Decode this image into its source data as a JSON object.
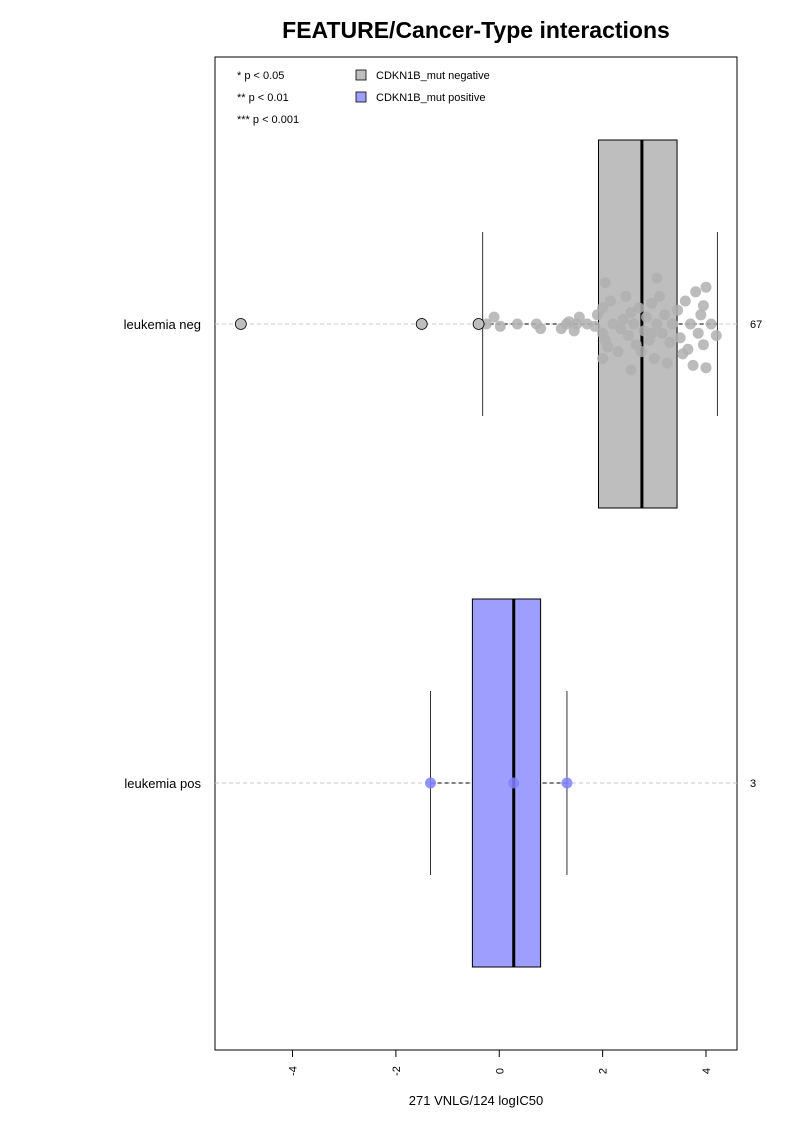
{
  "chart_data": {
    "type": "box",
    "title": "FEATURE/Cancer-Type interactions",
    "xlabel": "271 VNLG/124 logIC50",
    "xlim": [
      -5.5,
      4.6
    ],
    "xticks": [
      -4,
      -2,
      0,
      2,
      4
    ],
    "significance_legend": [
      "* p < 0.05",
      "** p < 0.01",
      "*** p < 0.001"
    ],
    "legend": [
      {
        "label": "CDKN1B_mut negative",
        "color": "#bebebe"
      },
      {
        "label": "CDKN1B_mut positive",
        "color": "#9e9eff"
      }
    ],
    "groups": [
      {
        "label": "leukemia neg",
        "n": "67",
        "box_color": "#bebebe",
        "point_color": "#b0b0b0",
        "q1": 1.92,
        "median": 2.76,
        "q3": 3.44,
        "whisker_low": -0.32,
        "whisker_high": 4.22,
        "outliers": [
          -5.0,
          -1.5,
          -0.4
        ],
        "points": [
          [
            -0.25,
            0.0
          ],
          [
            -0.1,
            -0.03
          ],
          [
            0.02,
            0.01
          ],
          [
            0.35,
            0.0
          ],
          [
            0.72,
            0.0
          ],
          [
            0.8,
            0.02
          ],
          [
            1.2,
            0.02
          ],
          [
            1.3,
            0.0
          ],
          [
            1.35,
            -0.01
          ],
          [
            1.45,
            0.03
          ],
          [
            1.5,
            0.0
          ],
          [
            1.55,
            -0.03
          ],
          [
            1.7,
            0.0
          ],
          [
            1.85,
            0.01
          ],
          [
            1.9,
            -0.04
          ],
          [
            2.0,
            0.04
          ],
          [
            2.0,
            -0.07
          ],
          [
            2.05,
            0.07
          ],
          [
            2.1,
            0.1
          ],
          [
            2.15,
            -0.1
          ],
          [
            2.2,
            0.0
          ],
          [
            2.35,
            0.02
          ],
          [
            2.4,
            -0.02
          ],
          [
            2.5,
            0.05
          ],
          [
            2.55,
            -0.05
          ],
          [
            2.6,
            0.0
          ],
          [
            2.65,
            0.09
          ],
          [
            2.7,
            -0.07
          ],
          [
            2.75,
            0.12
          ],
          [
            2.8,
            0.03
          ],
          [
            2.85,
            -0.03
          ],
          [
            2.9,
            0.07
          ],
          [
            2.95,
            -0.09
          ],
          [
            3.0,
            0.15
          ],
          [
            3.05,
            0.0
          ],
          [
            3.1,
            -0.12
          ],
          [
            3.15,
            0.04
          ],
          [
            3.2,
            -0.04
          ],
          [
            3.3,
            0.08
          ],
          [
            3.35,
            0.0
          ],
          [
            3.45,
            -0.06
          ],
          [
            3.5,
            0.06
          ],
          [
            3.55,
            0.13
          ],
          [
            3.6,
            -0.1
          ],
          [
            3.7,
            0.0
          ],
          [
            3.75,
            0.18
          ],
          [
            3.8,
            -0.14
          ],
          [
            3.85,
            0.04
          ],
          [
            3.9,
            -0.04
          ],
          [
            3.95,
            0.09
          ],
          [
            3.95,
            -0.08
          ],
          [
            4.0,
            0.19
          ],
          [
            4.0,
            -0.16
          ],
          [
            4.1,
            0.0
          ],
          [
            4.2,
            0.05
          ],
          [
            2.3,
            0.12
          ],
          [
            2.45,
            -0.12
          ],
          [
            3.25,
            0.17
          ],
          [
            2.0,
            0.15
          ],
          [
            2.05,
            -0.18
          ],
          [
            3.65,
            0.11
          ],
          [
            2.95,
            0.04
          ],
          [
            3.05,
            -0.2
          ],
          [
            2.55,
            0.2
          ]
        ]
      },
      {
        "label": "leukemia pos",
        "n": "3",
        "box_color": "#9e9eff",
        "point_color": "#8080ff",
        "q1": -0.52,
        "median": 0.28,
        "q3": 0.8,
        "whisker_low": -1.33,
        "whisker_high": 1.31,
        "outliers": [],
        "points": [
          [
            -1.33,
            0.0
          ],
          [
            0.28,
            0.0
          ],
          [
            1.31,
            0.0
          ]
        ]
      }
    ]
  }
}
